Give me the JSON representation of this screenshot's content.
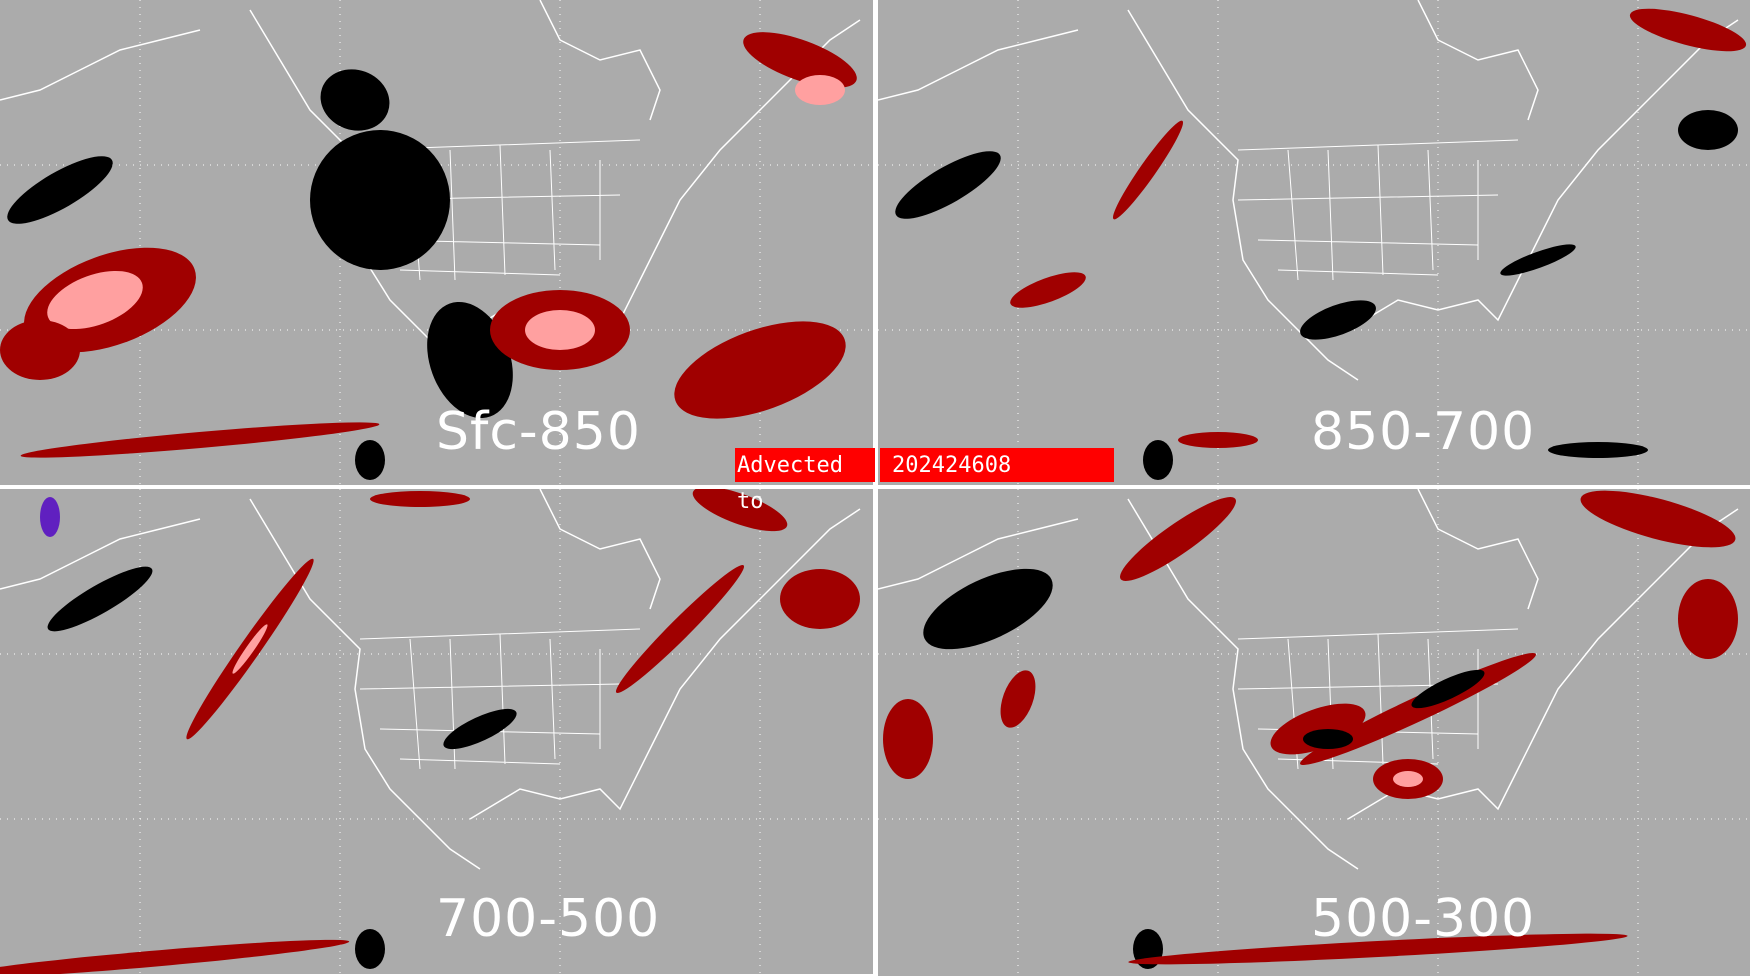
{
  "panels": [
    {
      "label": "Sfc-850"
    },
    {
      "label": "850-700"
    },
    {
      "label": "700-500"
    },
    {
      "label": "500-300"
    }
  ],
  "banner": {
    "prefix": "Advected to",
    "value": "202424608"
  },
  "colors": {
    "background": "#ababab",
    "coastlines": "#ffffff",
    "dark_red": "#a00000",
    "pink": "#ffa0a0",
    "black": "#000000",
    "purple": "#6020c0",
    "banner": "#ff0000"
  }
}
